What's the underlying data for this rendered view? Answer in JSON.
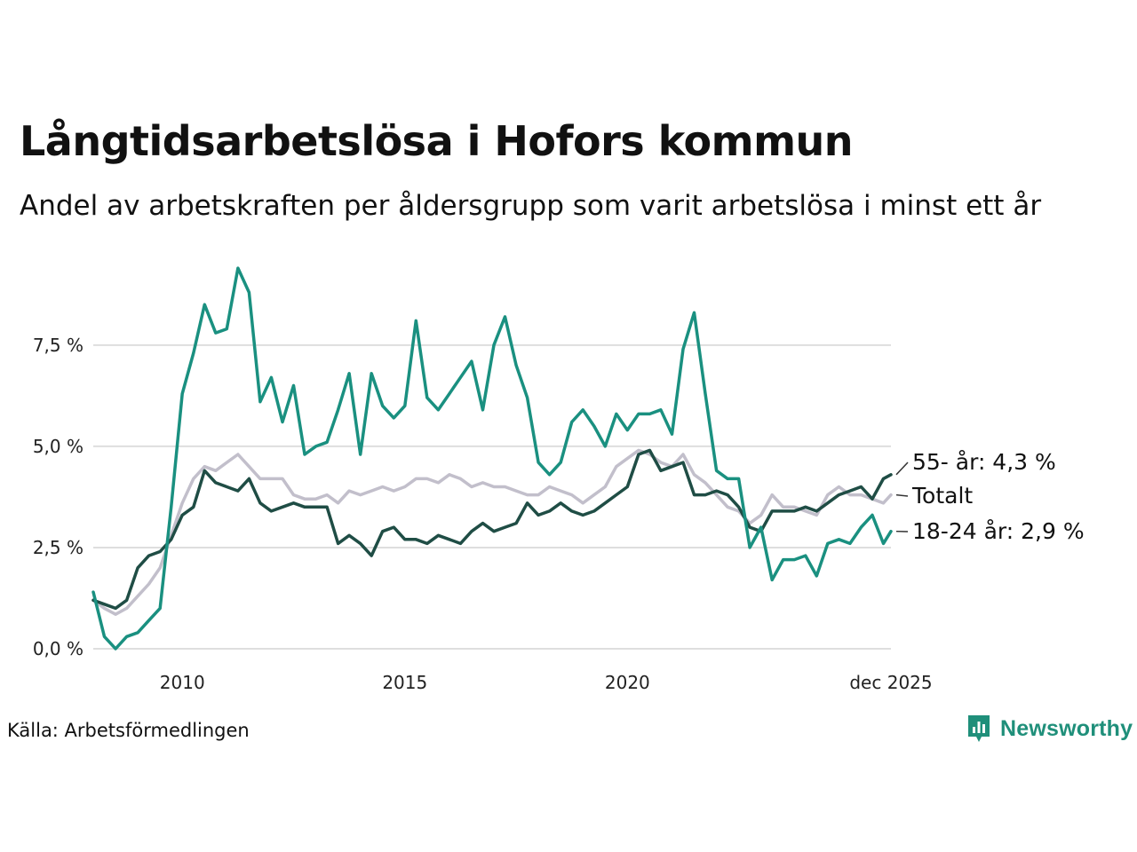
{
  "title": "Långtidsarbetslösa i Hofors kommun",
  "subtitle": "Andel av arbetskraften per åldersgrupp som varit arbetslösa i minst ett år",
  "source": "Källa: Arbetsförmedlingen",
  "brand": "Newsworthy",
  "colors": {
    "youth": "#1a9080",
    "senior": "#1f4d45",
    "total": "#c2bfcb",
    "grid": "#dedede",
    "brand": "#1f8f7a"
  },
  "chart_data": {
    "type": "line",
    "xlim": [
      2008.0,
      2025.92
    ],
    "ylim": [
      0,
      9.6
    ],
    "y_ticks": [
      0,
      2.5,
      5,
      7.5
    ],
    "y_tick_labels": [
      "0,0 %",
      "2,5 %",
      "5,0 %",
      "7,5 %"
    ],
    "x_ticks": [
      2010,
      2015,
      2020,
      2025.92
    ],
    "x_tick_labels": [
      "2010",
      "2015",
      "2020",
      "dec 2025"
    ],
    "series": [
      {
        "name": "Totalt",
        "key": "total",
        "label": "Totalt",
        "x": [
          2008.0,
          2008.25,
          2008.5,
          2008.75,
          2009.0,
          2009.25,
          2009.5,
          2009.75,
          2010.0,
          2010.25,
          2010.5,
          2010.75,
          2011.0,
          2011.25,
          2011.5,
          2011.75,
          2012.0,
          2012.25,
          2012.5,
          2012.75,
          2013.0,
          2013.25,
          2013.5,
          2013.75,
          2014.0,
          2014.25,
          2014.5,
          2014.75,
          2015.0,
          2015.25,
          2015.5,
          2015.75,
          2016.0,
          2016.25,
          2016.5,
          2016.75,
          2017.0,
          2017.25,
          2017.5,
          2017.75,
          2018.0,
          2018.25,
          2018.5,
          2018.75,
          2019.0,
          2019.25,
          2019.5,
          2019.75,
          2020.0,
          2020.25,
          2020.5,
          2020.75,
          2021.0,
          2021.25,
          2021.5,
          2021.75,
          2022.0,
          2022.25,
          2022.5,
          2022.75,
          2023.0,
          2023.25,
          2023.5,
          2023.75,
          2024.0,
          2024.25,
          2024.5,
          2024.75,
          2025.0,
          2025.25,
          2025.5,
          2025.75,
          2025.92
        ],
        "values": [
          1.2,
          1.0,
          0.85,
          1.0,
          1.3,
          1.6,
          2.0,
          2.8,
          3.6,
          4.2,
          4.5,
          4.4,
          4.6,
          4.8,
          4.5,
          4.2,
          4.2,
          4.2,
          3.8,
          3.7,
          3.7,
          3.8,
          3.6,
          3.9,
          3.8,
          3.9,
          4.0,
          3.9,
          4.0,
          4.2,
          4.2,
          4.1,
          4.3,
          4.2,
          4.0,
          4.1,
          4.0,
          4.0,
          3.9,
          3.8,
          3.8,
          4.0,
          3.9,
          3.8,
          3.6,
          3.8,
          4.0,
          4.5,
          4.7,
          4.9,
          4.8,
          4.6,
          4.5,
          4.8,
          4.3,
          4.1,
          3.8,
          3.5,
          3.4,
          3.1,
          3.3,
          3.8,
          3.5,
          3.5,
          3.4,
          3.3,
          3.8,
          4.0,
          3.8,
          3.8,
          3.7,
          3.6,
          3.8
        ],
        "end_label": "Totalt"
      },
      {
        "name": "55- år",
        "key": "senior",
        "label": "55- år",
        "x": [
          2008.0,
          2008.25,
          2008.5,
          2008.75,
          2009.0,
          2009.25,
          2009.5,
          2009.75,
          2010.0,
          2010.25,
          2010.5,
          2010.75,
          2011.0,
          2011.25,
          2011.5,
          2011.75,
          2012.0,
          2012.25,
          2012.5,
          2012.75,
          2013.0,
          2013.25,
          2013.5,
          2013.75,
          2014.0,
          2014.25,
          2014.5,
          2014.75,
          2015.0,
          2015.25,
          2015.5,
          2015.75,
          2016.0,
          2016.25,
          2016.5,
          2016.75,
          2017.0,
          2017.25,
          2017.5,
          2017.75,
          2018.0,
          2018.25,
          2018.5,
          2018.75,
          2019.0,
          2019.25,
          2019.5,
          2019.75,
          2020.0,
          2020.25,
          2020.5,
          2020.75,
          2021.0,
          2021.25,
          2021.5,
          2021.75,
          2022.0,
          2022.25,
          2022.5,
          2022.75,
          2023.0,
          2023.25,
          2023.5,
          2023.75,
          2024.0,
          2024.25,
          2024.5,
          2024.75,
          2025.0,
          2025.25,
          2025.5,
          2025.75,
          2025.92
        ],
        "values": [
          1.2,
          1.1,
          1.0,
          1.2,
          2.0,
          2.3,
          2.4,
          2.7,
          3.3,
          3.5,
          4.4,
          4.1,
          4.0,
          3.9,
          4.2,
          3.6,
          3.4,
          3.5,
          3.6,
          3.5,
          3.5,
          3.5,
          2.6,
          2.8,
          2.6,
          2.3,
          2.9,
          3.0,
          2.7,
          2.7,
          2.6,
          2.8,
          2.7,
          2.6,
          2.9,
          3.1,
          2.9,
          3.0,
          3.1,
          3.6,
          3.3,
          3.4,
          3.6,
          3.4,
          3.3,
          3.4,
          3.6,
          3.8,
          4.0,
          4.8,
          4.9,
          4.4,
          4.5,
          4.6,
          3.8,
          3.8,
          3.9,
          3.8,
          3.5,
          3.0,
          2.9,
          3.4,
          3.4,
          3.4,
          3.5,
          3.4,
          3.6,
          3.8,
          3.9,
          4.0,
          3.7,
          4.2,
          4.3
        ],
        "end_label": "55- år: 4,3 %"
      },
      {
        "name": "18-24 år",
        "key": "youth",
        "label": "18-24 år",
        "x": [
          2008.0,
          2008.25,
          2008.5,
          2008.75,
          2009.0,
          2009.25,
          2009.5,
          2009.75,
          2010.0,
          2010.25,
          2010.5,
          2010.75,
          2011.0,
          2011.25,
          2011.5,
          2011.75,
          2012.0,
          2012.25,
          2012.5,
          2012.75,
          2013.0,
          2013.25,
          2013.5,
          2013.75,
          2014.0,
          2014.25,
          2014.5,
          2014.75,
          2015.0,
          2015.25,
          2015.5,
          2015.75,
          2016.0,
          2016.25,
          2016.5,
          2016.75,
          2017.0,
          2017.25,
          2017.5,
          2017.75,
          2018.0,
          2018.25,
          2018.5,
          2018.75,
          2019.0,
          2019.25,
          2019.5,
          2019.75,
          2020.0,
          2020.25,
          2020.5,
          2020.75,
          2021.0,
          2021.25,
          2021.5,
          2021.75,
          2022.0,
          2022.25,
          2022.5,
          2022.75,
          2023.0,
          2023.25,
          2023.5,
          2023.75,
          2024.0,
          2024.25,
          2024.5,
          2024.75,
          2025.0,
          2025.25,
          2025.5,
          2025.75,
          2025.92
        ],
        "values": [
          1.4,
          0.3,
          0.0,
          0.3,
          0.4,
          0.7,
          1.0,
          3.5,
          6.3,
          7.3,
          8.5,
          7.8,
          7.9,
          9.4,
          8.8,
          6.1,
          6.7,
          5.6,
          6.5,
          4.8,
          5.0,
          5.1,
          5.9,
          6.8,
          4.8,
          6.8,
          6.0,
          5.7,
          6.0,
          8.1,
          6.2,
          5.9,
          6.3,
          6.7,
          7.1,
          5.9,
          7.5,
          8.2,
          7.0,
          6.2,
          4.6,
          4.3,
          4.6,
          5.6,
          5.9,
          5.5,
          5.0,
          5.8,
          5.4,
          5.8,
          5.8,
          5.9,
          5.3,
          7.4,
          8.3,
          6.3,
          4.4,
          4.2,
          4.2,
          2.5,
          3.0,
          1.7,
          2.2,
          2.2,
          2.3,
          1.8,
          2.6,
          2.7,
          2.6,
          3.0,
          3.3,
          2.6,
          2.9
        ],
        "end_label": "18-24 år: 2,9 %"
      }
    ]
  }
}
